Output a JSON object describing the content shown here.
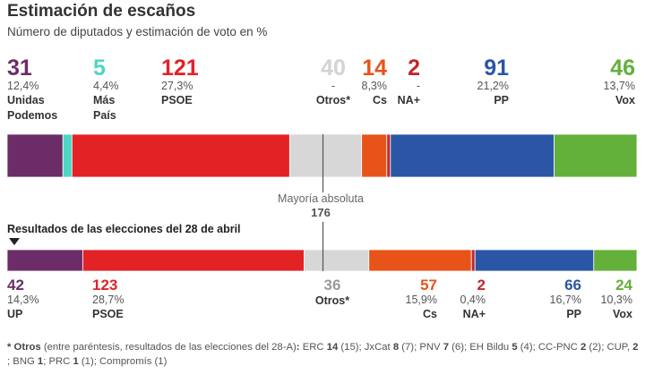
{
  "header": {
    "title": "Estimación de escaños",
    "subtitle": "Número de diputados y estimación de voto en %"
  },
  "chart_data": [
    {
      "type": "bar",
      "orientation": "horizontal-stacked",
      "title": "Estimación de escaños",
      "subtitle": "Número de diputados y estimación de voto en %",
      "total_seats": 350,
      "series": [
        {
          "name": "Unidas Podemos",
          "label": "Unidas\nPodemos",
          "seats": 31,
          "vote_pct": "12,4%",
          "color": "#6b2c68"
        },
        {
          "name": "Más País",
          "label": "Más\nPaís",
          "seats": 5,
          "vote_pct": "4,4%",
          "color": "#4ed6c4"
        },
        {
          "name": "PSOE",
          "label": "PSOE",
          "seats": 121,
          "vote_pct": "27,3%",
          "color": "#e32226"
        },
        {
          "name": "Otros*",
          "label": "Otros*",
          "seats": 40,
          "vote_pct": "-",
          "color": "#d7d7d7"
        },
        {
          "name": "Cs",
          "label": "Cs",
          "seats": 14,
          "vote_pct": "8,3%",
          "color": "#e8531a"
        },
        {
          "name": "NA+",
          "label": "NA+",
          "seats": 2,
          "vote_pct": "-",
          "color": "#c1272d"
        },
        {
          "name": "PP",
          "label": "PP",
          "seats": 91,
          "vote_pct": "21,2%",
          "color": "#2a56a5"
        },
        {
          "name": "Vox",
          "label": "Vox",
          "seats": 46,
          "vote_pct": "13,7%",
          "color": "#63b03b"
        }
      ]
    },
    {
      "type": "bar",
      "orientation": "horizontal-stacked",
      "title": "Resultados de las elecciones del 28 de abril",
      "total_seats": 350,
      "series": [
        {
          "name": "UP",
          "label": "UP",
          "seats": 42,
          "vote_pct": "14,3%",
          "color": "#6b2c68"
        },
        {
          "name": "PSOE",
          "label": "PSOE",
          "seats": 123,
          "vote_pct": "28,7%",
          "color": "#e32226"
        },
        {
          "name": "Otros*",
          "label": "Otros*",
          "seats": 36,
          "vote_pct": "",
          "color": "#d7d7d7"
        },
        {
          "name": "Cs",
          "label": "Cs",
          "seats": 57,
          "vote_pct": "15,9%",
          "color": "#e8531a"
        },
        {
          "name": "NA+",
          "label": "NA+",
          "seats": 2,
          "vote_pct": "0,4%",
          "color": "#c1272d"
        },
        {
          "name": "PP",
          "label": "PP",
          "seats": 66,
          "vote_pct": "16,7%",
          "color": "#2a56a5"
        },
        {
          "name": "Vox",
          "label": "Vox",
          "seats": 24,
          "vote_pct": "10,3%",
          "color": "#63b03b"
        }
      ]
    }
  ],
  "majority": {
    "label": "Mayoría absoluta",
    "seats": 176
  },
  "previous": {
    "title": "Resultados de las elecciones del 28 de abril"
  },
  "footnote": {
    "star": "* ",
    "otros": "Otros",
    "intro": " (entre paréntesis, resultados de las elecciones del 28-A)",
    "colon": ":",
    "items": [
      {
        "party": "ERC",
        "seats": "14",
        "prev": "(15)"
      },
      {
        "party": "JxCat",
        "seats": "8",
        "prev": "(7)"
      },
      {
        "party": "PNV",
        "seats": "7",
        "prev": "(6)"
      },
      {
        "party": "EH Bildu",
        "seats": "5",
        "prev": "(4)"
      },
      {
        "party": "CC-PNC",
        "seats": "2",
        "prev": "(2)"
      },
      {
        "party": "CUP,",
        "seats": "2",
        "prev": ""
      },
      {
        "party": "BNG",
        "seats": "1",
        "prev": ""
      },
      {
        "party": "PRC",
        "seats": "1",
        "prev": "(1)"
      },
      {
        "party": "Compromís",
        "seats": "",
        "prev": "(1)"
      }
    ]
  }
}
